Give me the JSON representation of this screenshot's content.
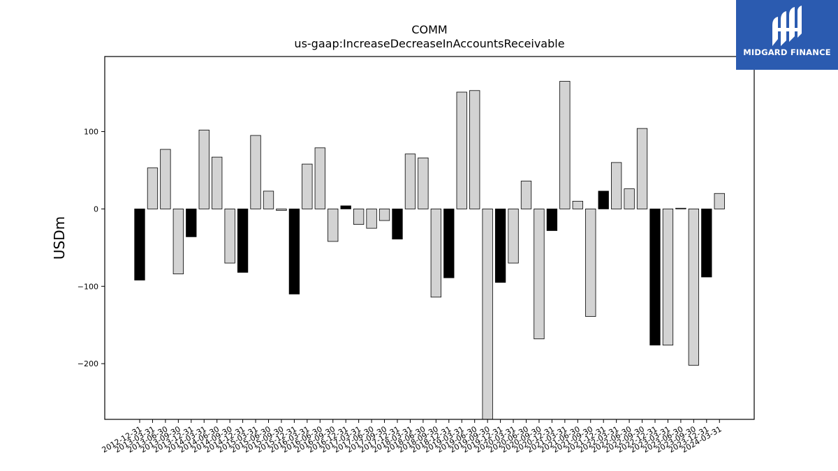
{
  "chart_data": {
    "type": "bar",
    "title": "COMM",
    "subtitle": "us-gaap:IncreaseDecreaseInAccountsReceivable",
    "xlabel": "",
    "ylabel": "USDm",
    "ylim": [
      -272,
      197
    ],
    "yticks": [
      100,
      0,
      -100,
      -200
    ],
    "ytick_labels": [
      "100",
      "0",
      "−100",
      "−200"
    ],
    "grid": false,
    "colors": {
      "annual_bar": "#000000",
      "quarter_bar": "#d3d3d3",
      "edge": "#000000"
    },
    "categories": [
      "2012-12-31",
      "2013-03-31",
      "2013-06-30",
      "2013-09-30",
      "2013-12-31",
      "2014-03-31",
      "2014-06-30",
      "2014-09-30",
      "2014-12-31",
      "2015-03-31",
      "2015-06-30",
      "2015-09-30",
      "2015-12-31",
      "2016-03-31",
      "2016-06-30",
      "2016-09-30",
      "2016-12-31",
      "2017-03-31",
      "2017-06-30",
      "2017-09-30",
      "2017-12-31",
      "2018-03-31",
      "2018-06-30",
      "2018-09-30",
      "2018-12-31",
      "2019-03-31",
      "2019-06-30",
      "2019-09-30",
      "2019-12-31",
      "2020-03-31",
      "2020-06-30",
      "2020-09-30",
      "2020-12-31",
      "2021-03-31",
      "2021-06-30",
      "2021-09-30",
      "2021-12-31",
      "2022-03-31",
      "2022-06-30",
      "2022-09-30",
      "2022-12-31",
      "2023-03-31",
      "2023-06-30",
      "2023-09-30",
      "2023-12-31",
      "2024-03-31"
    ],
    "values": [
      -92,
      53,
      77,
      -84,
      -36,
      102,
      67,
      -70,
      -82,
      95,
      23,
      -2,
      -110,
      58,
      79,
      -42,
      4,
      -20,
      -25,
      -15,
      -39,
      71,
      66,
      -114,
      -89,
      151,
      153,
      -272,
      -95,
      -70,
      36,
      -168,
      -28,
      165,
      10,
      -139,
      23,
      60,
      26,
      104,
      -176,
      -176,
      1,
      -202,
      -88,
      20
    ],
    "annual": [
      true,
      false,
      false,
      false,
      true,
      false,
      false,
      false,
      true,
      false,
      false,
      false,
      true,
      false,
      false,
      false,
      true,
      false,
      false,
      false,
      true,
      false,
      false,
      false,
      true,
      false,
      false,
      false,
      true,
      false,
      false,
      false,
      true,
      false,
      false,
      false,
      true,
      false,
      false,
      false,
      true,
      false,
      false,
      false,
      true,
      false
    ]
  },
  "logo": {
    "text": "MIDGARD FINANCE",
    "icon": "midgard-logo-icon"
  }
}
